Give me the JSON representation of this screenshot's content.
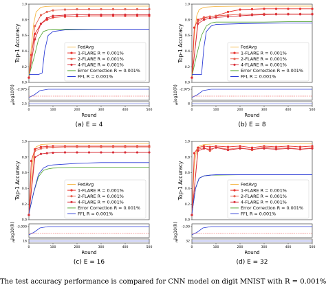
{
  "colors": {
    "fedavg": "#f5b84a",
    "flare1": "#e8302a",
    "flare2": "#e66050",
    "flare4": "#d8303a",
    "error_correction": "#5aa83a",
    "ffl": "#2b3bd6",
    "dashed_red": "#e8302a",
    "pale_red": "#f2a3a0"
  },
  "figure_caption": "The test accuracy performance is compared for CNN model on digit MNIST with R = 0.001%",
  "chart_data": [
    {
      "type": "line",
      "caption": "(a) E = 4",
      "xlabel": "Round",
      "ylabel": "Top-1 Accuracy",
      "small_ylabel": "log10(R)",
      "small_ylabel_bottom": "E",
      "small_ytick": "-2.975",
      "small_ytick_bottom": "2.5",
      "xlim": [
        0,
        500
      ],
      "ylim": [
        0.0,
        1.0
      ],
      "xticks": [
        "0",
        "100",
        "200",
        "300",
        "400",
        "500"
      ],
      "yticks": [
        "0.0",
        "0.2",
        "0.4",
        "0.6",
        "0.8",
        "1.0"
      ],
      "legend_position": "lower center",
      "series": [
        {
          "name": "FedAvg",
          "key": "fedavg",
          "marker": false,
          "x": [
            0,
            10,
            20,
            30,
            50,
            70,
            100,
            150,
            200,
            300,
            400,
            500
          ],
          "y": [
            0.08,
            0.45,
            0.75,
            0.9,
            0.96,
            0.97,
            0.975,
            0.975,
            0.975,
            0.975,
            0.975,
            0.975
          ]
        },
        {
          "name": "1-FLARE R = 0.001%",
          "key": "flare1",
          "marker": true,
          "x": [
            0,
            10,
            25,
            50,
            75,
            100,
            150,
            200,
            250,
            300,
            350,
            400,
            450,
            500
          ],
          "y": [
            0.06,
            0.35,
            0.62,
            0.75,
            0.8,
            0.83,
            0.84,
            0.845,
            0.85,
            0.85,
            0.85,
            0.85,
            0.85,
            0.85
          ]
        },
        {
          "name": "2-FLARE R = 0.001%",
          "key": "flare2",
          "marker": true,
          "x": [
            0,
            25,
            50,
            75,
            100,
            150,
            200,
            250,
            300,
            350,
            400,
            450,
            500
          ],
          "y": [
            0.06,
            0.72,
            0.86,
            0.9,
            0.92,
            0.93,
            0.935,
            0.935,
            0.935,
            0.935,
            0.935,
            0.935,
            0.935
          ]
        },
        {
          "name": "4-FLARE R = 0.001%",
          "key": "flare4",
          "marker": true,
          "x": [
            0,
            25,
            50,
            75,
            100,
            150,
            200,
            250,
            300,
            350,
            400,
            450,
            500
          ],
          "y": [
            0.06,
            0.55,
            0.75,
            0.82,
            0.85,
            0.86,
            0.865,
            0.865,
            0.865,
            0.865,
            0.865,
            0.865,
            0.865
          ]
        },
        {
          "name": "Error Correction R = 0.001%",
          "key": "error_correction",
          "marker": false,
          "x": [
            0,
            20,
            40,
            60,
            80,
            100,
            150,
            200,
            300,
            400,
            500
          ],
          "y": [
            0.08,
            0.3,
            0.55,
            0.65,
            0.67,
            0.68,
            0.68,
            0.68,
            0.68,
            0.68,
            0.68
          ]
        },
        {
          "name": "FFL R = 0.001%",
          "key": "ffl",
          "marker": false,
          "x": [
            0,
            40,
            55,
            65,
            80,
            100,
            150,
            200,
            300,
            400,
            500
          ],
          "y": [
            0.1,
            0.1,
            0.12,
            0.4,
            0.6,
            0.65,
            0.67,
            0.675,
            0.68,
            0.68,
            0.68
          ]
        }
      ]
    },
    {
      "type": "line",
      "caption": "(b) E = 8",
      "xlabel": "Round",
      "ylabel": "Top-1 Accuracy",
      "small_ylabel": "log10(R)",
      "small_ylabel_bottom": "E",
      "small_ytick": "-2.975",
      "small_ytick_bottom": "8",
      "xlim": [
        0,
        500
      ],
      "ylim": [
        0.0,
        1.0
      ],
      "xticks": [
        "0",
        "100",
        "200",
        "300",
        "400",
        "500"
      ],
      "yticks": [
        "0.0",
        "0.2",
        "0.4",
        "0.6",
        "0.8",
        "1.0"
      ],
      "legend_position": "lower center",
      "series": [
        {
          "name": "FedAvg",
          "key": "fedavg",
          "marker": false,
          "x": [
            0,
            10,
            20,
            30,
            50,
            100,
            200,
            300,
            400,
            500
          ],
          "y": [
            0.08,
            0.6,
            0.85,
            0.93,
            0.96,
            0.97,
            0.975,
            0.975,
            0.975,
            0.975
          ]
        },
        {
          "name": "1-FLARE R = 0.001%",
          "key": "flare1",
          "marker": true,
          "x": [
            0,
            10,
            25,
            50,
            75,
            100,
            150,
            200,
            250,
            300,
            350,
            400,
            450,
            500
          ],
          "y": [
            0.06,
            0.7,
            0.8,
            0.83,
            0.84,
            0.85,
            0.9,
            0.93,
            0.935,
            0.94,
            0.94,
            0.94,
            0.94,
            0.94
          ]
        },
        {
          "name": "2-FLARE R = 0.001%",
          "key": "flare2",
          "marker": true,
          "x": [
            0,
            25,
            50,
            75,
            100,
            150,
            200,
            250,
            300,
            350,
            400,
            450,
            500
          ],
          "y": [
            0.06,
            0.78,
            0.82,
            0.84,
            0.85,
            0.86,
            0.87,
            0.87,
            0.875,
            0.875,
            0.875,
            0.875,
            0.875
          ]
        },
        {
          "name": "4-FLARE R = 0.001%",
          "key": "flare4",
          "marker": true,
          "x": [
            0,
            25,
            50,
            75,
            100,
            150,
            200,
            250,
            300,
            350,
            400,
            450,
            500
          ],
          "y": [
            0.06,
            0.75,
            0.8,
            0.82,
            0.83,
            0.84,
            0.85,
            0.86,
            0.865,
            0.87,
            0.87,
            0.87,
            0.87
          ]
        },
        {
          "name": "Error Correction R = 0.001%",
          "key": "error_correction",
          "marker": false,
          "x": [
            0,
            20,
            40,
            60,
            80,
            100,
            200,
            300,
            400,
            500
          ],
          "y": [
            0.08,
            0.35,
            0.6,
            0.72,
            0.76,
            0.77,
            0.77,
            0.77,
            0.775,
            0.775
          ]
        },
        {
          "name": "FFL R = 0.001%",
          "key": "ffl",
          "marker": false,
          "x": [
            0,
            40,
            50,
            60,
            80,
            100,
            200,
            300,
            400,
            500
          ],
          "y": [
            0.1,
            0.1,
            0.45,
            0.65,
            0.72,
            0.74,
            0.75,
            0.755,
            0.76,
            0.76
          ]
        }
      ]
    },
    {
      "type": "line",
      "caption": "(c) E = 16",
      "xlabel": "Round",
      "ylabel": "Top-1 Accuracy",
      "small_ylabel": "log10(R)",
      "small_ylabel_bottom": "E",
      "small_ytick": "-3.000",
      "small_ytick_bottom": "16",
      "xlim": [
        0,
        500
      ],
      "ylim": [
        0.0,
        1.0
      ],
      "xticks": [
        "0",
        "100",
        "200",
        "300",
        "400",
        "500"
      ],
      "yticks": [
        "0.0",
        "0.2",
        "0.4",
        "0.6",
        "0.8",
        "1.0"
      ],
      "legend_position": "lower center",
      "series": [
        {
          "name": "FedAvg",
          "key": "fedavg",
          "marker": false,
          "x": [
            0,
            10,
            20,
            30,
            50,
            100,
            200,
            300,
            400,
            500
          ],
          "y": [
            0.08,
            0.55,
            0.85,
            0.93,
            0.96,
            0.97,
            0.975,
            0.975,
            0.975,
            0.975
          ]
        },
        {
          "name": "1-FLARE R = 0.001%",
          "key": "flare1",
          "marker": true,
          "x": [
            0,
            10,
            25,
            50,
            75,
            100,
            150,
            200,
            250,
            300,
            350,
            400,
            450,
            500
          ],
          "y": [
            0.06,
            0.75,
            0.9,
            0.93,
            0.935,
            0.94,
            0.94,
            0.94,
            0.94,
            0.94,
            0.94,
            0.94,
            0.94,
            0.94
          ]
        },
        {
          "name": "2-FLARE R = 0.001%",
          "key": "flare2",
          "marker": true,
          "x": [
            0,
            25,
            50,
            75,
            100,
            150,
            200,
            250,
            300,
            350,
            400,
            450,
            500
          ],
          "y": [
            0.06,
            0.88,
            0.91,
            0.92,
            0.925,
            0.93,
            0.93,
            0.93,
            0.93,
            0.93,
            0.93,
            0.93,
            0.93
          ]
        },
        {
          "name": "4-FLARE R = 0.001%",
          "key": "flare4",
          "marker": true,
          "x": [
            0,
            25,
            50,
            75,
            100,
            150,
            200,
            250,
            300,
            350,
            400,
            450,
            500
          ],
          "y": [
            0.06,
            0.8,
            0.84,
            0.85,
            0.855,
            0.86,
            0.86,
            0.86,
            0.86,
            0.86,
            0.86,
            0.86,
            0.86
          ]
        },
        {
          "name": "Error Correction R = 0.001%",
          "key": "error_correction",
          "marker": false,
          "x": [
            0,
            20,
            40,
            60,
            80,
            100,
            200,
            300,
            400,
            500
          ],
          "y": [
            0.08,
            0.35,
            0.55,
            0.63,
            0.65,
            0.66,
            0.67,
            0.67,
            0.67,
            0.67
          ]
        },
        {
          "name": "FFL R = 0.001%",
          "key": "ffl",
          "marker": false,
          "x": [
            0,
            20,
            40,
            60,
            80,
            100,
            200,
            300,
            400,
            500
          ],
          "y": [
            0.08,
            0.35,
            0.58,
            0.66,
            0.69,
            0.7,
            0.72,
            0.73,
            0.73,
            0.73
          ]
        }
      ]
    },
    {
      "type": "line",
      "caption": "(d) E = 32",
      "xlabel": "Round",
      "ylabel": "Top-1 Accuracy",
      "small_ylabel": "log10(R)",
      "small_ylabel_bottom": "E",
      "small_ytick": "-3.00",
      "small_ytick_bottom": "32",
      "xlim": [
        0,
        500
      ],
      "ylim": [
        0.0,
        1.0
      ],
      "xticks": [
        "0",
        "100",
        "200",
        "300",
        "400",
        "500"
      ],
      "yticks": [
        "0.0",
        "0.2",
        "0.4",
        "0.6",
        "0.8",
        "1.0"
      ],
      "legend_position": "lower center",
      "series": [
        {
          "name": "FedAvg",
          "key": "fedavg",
          "marker": false,
          "x": [
            0,
            10,
            20,
            30,
            50,
            100,
            200,
            300,
            400,
            500
          ],
          "y": [
            0.08,
            0.7,
            0.9,
            0.94,
            0.96,
            0.97,
            0.975,
            0.975,
            0.975,
            0.975
          ]
        },
        {
          "name": "1-FLARE R = 0.001%",
          "key": "flare1",
          "marker": true,
          "x": [
            0,
            10,
            25,
            50,
            75,
            100,
            150,
            200,
            250,
            300,
            350,
            400,
            450,
            500
          ],
          "y": [
            0.06,
            0.85,
            0.92,
            0.94,
            0.93,
            0.94,
            0.93,
            0.94,
            0.92,
            0.94,
            0.93,
            0.94,
            0.93,
            0.94
          ]
        },
        {
          "name": "2-FLARE R = 0.001%",
          "key": "flare2",
          "marker": true,
          "x": [
            0,
            25,
            50,
            75,
            100,
            150,
            200,
            250,
            300,
            350,
            400,
            450,
            500
          ],
          "y": [
            0.06,
            0.9,
            0.92,
            0.88,
            0.93,
            0.9,
            0.92,
            0.89,
            0.93,
            0.91,
            0.92,
            0.9,
            0.92
          ]
        },
        {
          "name": "4-FLARE R = 0.001%",
          "key": "flare4",
          "marker": true,
          "x": [
            0,
            25,
            50,
            75,
            100,
            150,
            200,
            250,
            300,
            350,
            400,
            450,
            500
          ],
          "y": [
            0.06,
            0.88,
            0.91,
            0.9,
            0.92,
            0.89,
            0.91,
            0.9,
            0.91,
            0.9,
            0.91,
            0.9,
            0.91
          ]
        },
        {
          "name": "Error Correction R = 0.001%",
          "key": "error_correction",
          "marker": false,
          "x": [
            0,
            15,
            30,
            50,
            80,
            100,
            200,
            300,
            400,
            500
          ],
          "y": [
            0.08,
            0.4,
            0.53,
            0.56,
            0.57,
            0.57,
            0.575,
            0.575,
            0.575,
            0.575
          ]
        },
        {
          "name": "FFL R = 0.001%",
          "key": "ffl",
          "marker": false,
          "x": [
            0,
            15,
            30,
            50,
            80,
            100,
            200,
            300,
            400,
            500
          ],
          "y": [
            0.08,
            0.4,
            0.53,
            0.56,
            0.57,
            0.575,
            0.575,
            0.575,
            0.575,
            0.575
          ]
        }
      ]
    }
  ]
}
